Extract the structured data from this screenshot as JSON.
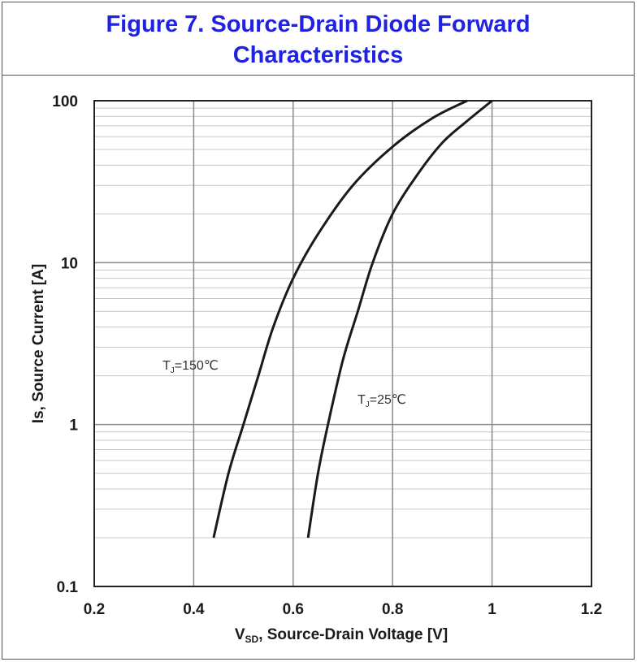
{
  "chart_data": {
    "type": "line",
    "title_lines": [
      "Figure 7. Source-Drain Diode Forward",
      "Characteristics"
    ],
    "xlabel": {
      "main": "V",
      "sub": "SD",
      "rest": ", Source-Drain Voltage [V]"
    },
    "ylabel": "Is, Source Current [A]",
    "xlim": [
      0.2,
      1.2
    ],
    "ylim": [
      0.1,
      100
    ],
    "y_scale": "log",
    "grid": true,
    "x_ticks": [
      {
        "value": 0.2,
        "label": "0.2"
      },
      {
        "value": 0.4,
        "label": "0.4"
      },
      {
        "value": 0.6,
        "label": "0.6"
      },
      {
        "value": 0.8,
        "label": "0.8"
      },
      {
        "value": 1.0,
        "label": "1"
      },
      {
        "value": 1.2,
        "label": "1.2"
      }
    ],
    "y_ticks": [
      {
        "value": 0.1,
        "label": "0.1"
      },
      {
        "value": 1,
        "label": "1"
      },
      {
        "value": 10,
        "label": "10"
      },
      {
        "value": 100,
        "label": "100"
      }
    ],
    "series": [
      {
        "annotation": {
          "main": "T",
          "sub": "J",
          "rest": "=150℃"
        },
        "color": "#1a1a1a",
        "points": [
          [
            0.44,
            0.2
          ],
          [
            0.47,
            0.5
          ],
          [
            0.5,
            1.0
          ],
          [
            0.53,
            2.0
          ],
          [
            0.56,
            4.0
          ],
          [
            0.6,
            8.0
          ],
          [
            0.65,
            15
          ],
          [
            0.72,
            30
          ],
          [
            0.8,
            52
          ],
          [
            0.88,
            78
          ],
          [
            0.95,
            100
          ]
        ]
      },
      {
        "annotation": {
          "main": "T",
          "sub": "J",
          "rest": "=25℃"
        },
        "color": "#1a1a1a",
        "points": [
          [
            0.63,
            0.2
          ],
          [
            0.65,
            0.5
          ],
          [
            0.67,
            1.0
          ],
          [
            0.7,
            2.5
          ],
          [
            0.73,
            5.0
          ],
          [
            0.76,
            10
          ],
          [
            0.8,
            20
          ],
          [
            0.85,
            35
          ],
          [
            0.9,
            55
          ],
          [
            0.95,
            75
          ],
          [
            1.0,
            100
          ]
        ]
      }
    ]
  }
}
